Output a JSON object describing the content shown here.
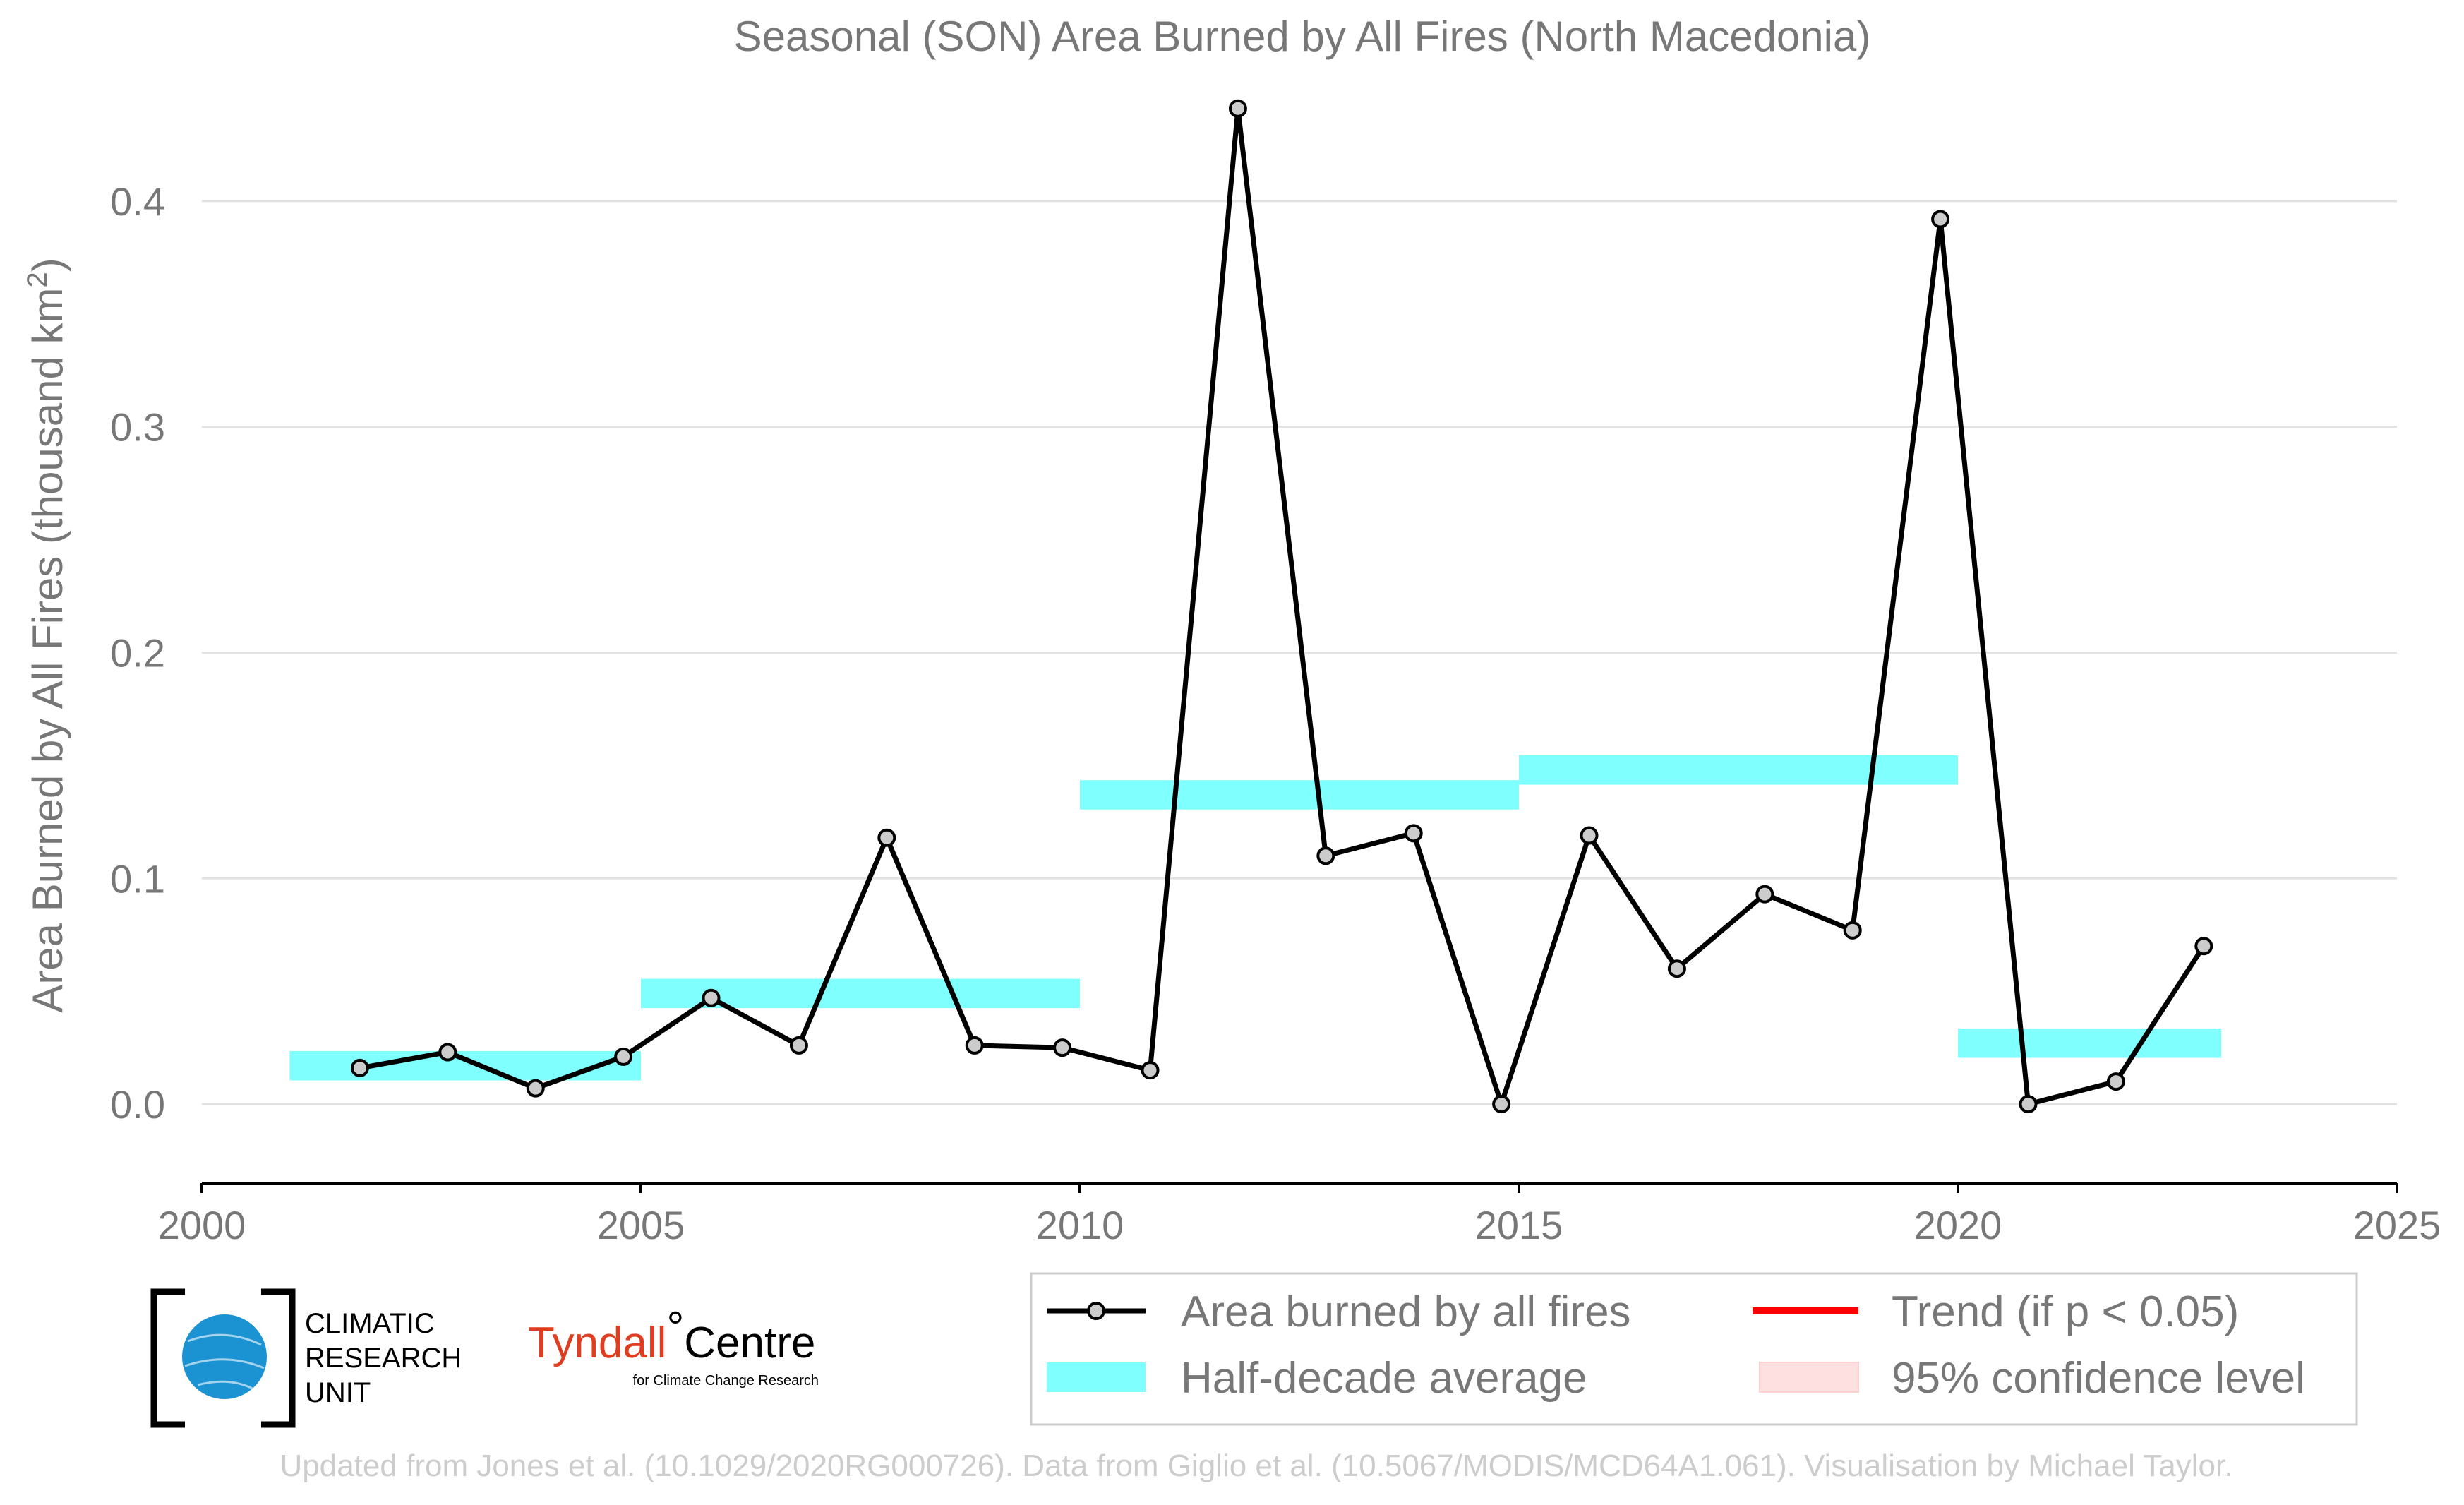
{
  "chart_data": {
    "type": "line",
    "title": "Seasonal (SON) Area Burned by All Fires (North Macedonia)",
    "ylabel_main": "Area Burned by All Fires (thousand km",
    "ylabel_sup": "2",
    "ylabel_close": ")",
    "xlim": [
      2000,
      2025
    ],
    "ylim": [
      -0.035,
      0.45
    ],
    "x_ticks": [
      "2000",
      "2005",
      "2010",
      "2015",
      "2020",
      "2025"
    ],
    "y_ticks": [
      "0.0",
      "0.1",
      "0.2",
      "0.3",
      "0.4"
    ],
    "grid": "horizontal",
    "series": [
      {
        "name": "Area burned by all fires",
        "color": "#000000",
        "x": [
          2001.8,
          2002.8,
          2003.8,
          2004.8,
          2005.8,
          2006.8,
          2007.8,
          2008.8,
          2009.8,
          2010.8,
          2011.8,
          2012.8,
          2013.8,
          2014.8,
          2015.8,
          2016.8,
          2017.8,
          2018.8,
          2019.8,
          2020.8,
          2021.8,
          2022.8
        ],
        "values": [
          0.016,
          0.023,
          0.007,
          0.021,
          0.047,
          0.026,
          0.118,
          0.026,
          0.025,
          0.015,
          0.441,
          0.11,
          0.12,
          0.0,
          0.119,
          0.06,
          0.093,
          0.077,
          0.392,
          0.0,
          0.01,
          0.07
        ]
      }
    ],
    "half_decade_average": {
      "name": "Half-decade average",
      "color": "#80ffff",
      "segments": [
        {
          "x0": 2001,
          "x1": 2005,
          "value": 0.017
        },
        {
          "x0": 2005,
          "x1": 2010,
          "value": 0.049
        },
        {
          "x0": 2010,
          "x1": 2015,
          "value": 0.137
        },
        {
          "x0": 2015,
          "x1": 2020,
          "value": 0.148
        },
        {
          "x0": 2020,
          "x1": 2023,
          "value": 0.027
        }
      ]
    },
    "legend": {
      "position": "bottom-right",
      "items": [
        {
          "label": "Area burned by all fires",
          "kind": "line-marker",
          "color": "#000000"
        },
        {
          "label": "Trend (if p < 0.05)",
          "kind": "line",
          "color": "#ff0000"
        },
        {
          "label": "Half-decade average",
          "kind": "band",
          "color": "#80ffff"
        },
        {
          "label": "95% confidence level",
          "kind": "band",
          "color": "#ffe0e0"
        }
      ]
    }
  },
  "logos": {
    "cru": [
      "CLIMATIC",
      "RESEARCH",
      "UNIT"
    ],
    "tyndall_main": "Tyndall",
    "tyndall_degree": "°",
    "tyndall_centre": "Centre",
    "tyndall_sub": "for Climate Change Research"
  },
  "credit": "Updated from Jones et al. (10.1029/2020RG000726). Data from Giglio et al. (10.5067/MODIS/MCD64A1.061). Visualisation by Michael Taylor."
}
